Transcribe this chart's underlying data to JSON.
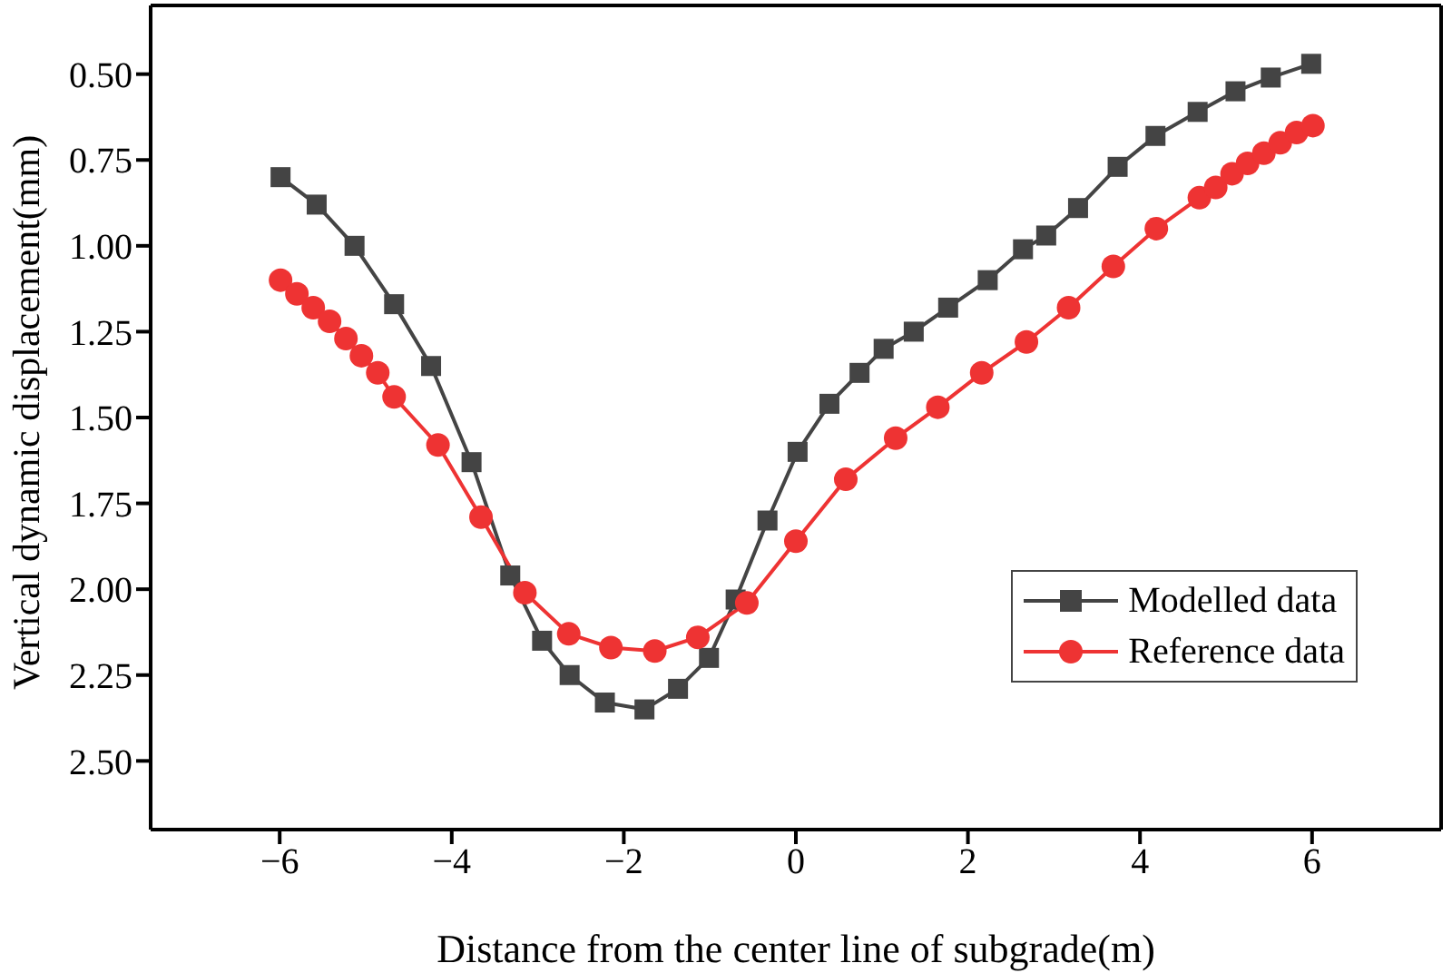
{
  "chart_data": {
    "type": "line",
    "xlabel": "Distance from the center line of subgrade(m)",
    "ylabel": "Vertical dynamic displacement(mm)",
    "xlim": [
      -7.5,
      7.5
    ],
    "xticks": [
      -6,
      -4,
      -2,
      0,
      2,
      4,
      6
    ],
    "ylim": [
      2.7,
      0.3
    ],
    "yticks": [
      {
        "value": 0.5,
        "label": "0.50"
      },
      0.75,
      {
        "value": 1,
        "label": "1.00"
      },
      1.25,
      {
        "value": 1.5,
        "label": "1.50"
      },
      1.75,
      {
        "value": 2,
        "label": "2.00"
      },
      2.25,
      {
        "value": 2.5,
        "label": "2.50"
      }
    ],
    "legend": "bottom right",
    "line_style": "solid",
    "series": [
      {
        "name": "Modelled data",
        "color": "#444444",
        "marker": "square",
        "x": [
          -5.99,
          -5.57,
          -5.13,
          -4.67,
          -4.24,
          -3.77,
          -3.32,
          -2.95,
          -2.63,
          -2.22,
          -1.76,
          -1.37,
          -1.01,
          -0.7,
          -0.33,
          0.02,
          0.39,
          0.74,
          1.02,
          1.37,
          1.77,
          2.23,
          2.64,
          2.91,
          3.28,
          3.74,
          4.18,
          4.67,
          5.11,
          5.52,
          5.99
        ],
        "values": [
          0.8,
          0.88,
          1.0,
          1.17,
          1.35,
          1.63,
          1.96,
          2.15,
          2.25,
          2.33,
          2.35,
          2.29,
          2.2,
          2.03,
          1.8,
          1.6,
          1.46,
          1.37,
          1.3,
          1.25,
          1.18,
          1.1,
          1.01,
          0.97,
          0.89,
          0.77,
          0.68,
          0.61,
          0.55,
          0.51,
          0.47
        ]
      },
      {
        "name": "Reference data",
        "color": "#ee3333",
        "marker": "circle",
        "x": [
          -5.99,
          -5.8,
          -5.61,
          -5.42,
          -5.23,
          -5.05,
          -4.86,
          -4.67,
          -4.16,
          -3.66,
          -3.15,
          -2.64,
          -2.15,
          -1.64,
          -1.14,
          -0.57,
          0.0,
          0.58,
          1.16,
          1.65,
          2.16,
          2.68,
          3.17,
          3.69,
          4.19,
          4.69,
          4.88,
          5.07,
          5.25,
          5.44,
          5.63,
          5.82,
          6.01
        ],
        "values": [
          1.1,
          1.14,
          1.18,
          1.22,
          1.27,
          1.32,
          1.37,
          1.44,
          1.58,
          1.79,
          2.01,
          2.13,
          2.17,
          2.18,
          2.14,
          2.04,
          1.86,
          1.68,
          1.56,
          1.47,
          1.37,
          1.28,
          1.18,
          1.06,
          0.95,
          0.86,
          0.83,
          0.79,
          0.76,
          0.73,
          0.7,
          0.67,
          0.65
        ]
      }
    ]
  }
}
